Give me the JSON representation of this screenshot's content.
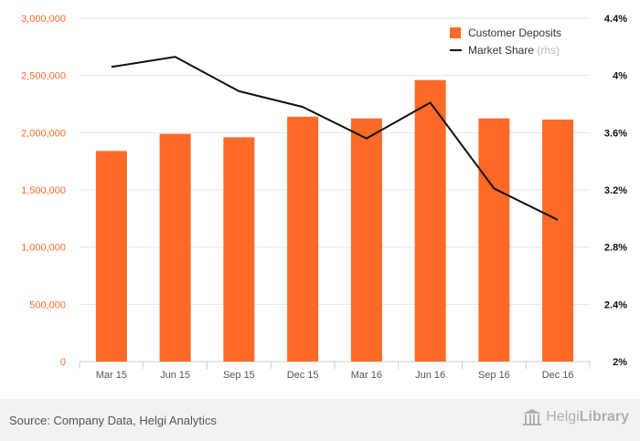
{
  "chart_data": {
    "type": "bar",
    "categories": [
      "Mar 15",
      "Jun 15",
      "Sep 15",
      "Dec 15",
      "Mar 16",
      "Jun 16",
      "Sep 16",
      "Dec 16"
    ],
    "series": [
      {
        "name": "Customer Deposits",
        "type": "bar",
        "axis": "left",
        "color": "#ff6a28",
        "values": [
          1840000,
          1990000,
          1960000,
          2140000,
          2125000,
          2460000,
          2125000,
          2115000
        ]
      },
      {
        "name": "Market Share",
        "suffix": "(rhs)",
        "type": "line",
        "axis": "right",
        "color": "#111111",
        "values": [
          4.06,
          4.13,
          3.89,
          3.78,
          3.56,
          3.81,
          3.21,
          2.99
        ]
      }
    ],
    "y_left": {
      "min": 0,
      "max": 3000000,
      "ticks": [
        "0",
        "500,000",
        "1,000,000",
        "1,500,000",
        "2,000,000",
        "2,500,000",
        "3,000,000"
      ]
    },
    "y_right": {
      "min": 2,
      "max": 4.4,
      "ticks": [
        "2%",
        "2.4%",
        "2.8%",
        "3.2%",
        "3.6%",
        "4%",
        "4.4%"
      ]
    },
    "grid": true,
    "legend_position": "top-right",
    "title": "",
    "xlabel": "",
    "ylabel": ""
  },
  "footer": {
    "source": "Source: Company Data, Helgi Analytics",
    "logo_text_a": "Helgi",
    "logo_text_b": "Library"
  }
}
